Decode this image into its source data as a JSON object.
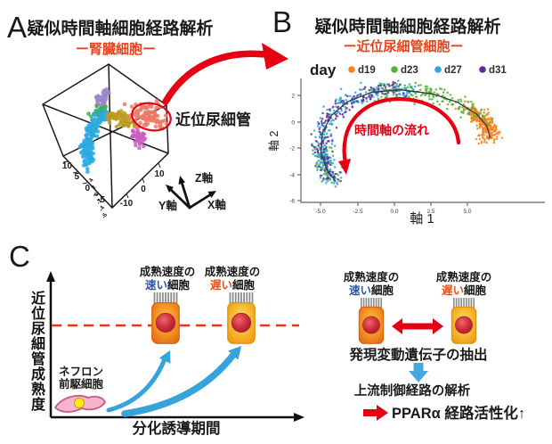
{
  "colors": {
    "accent_red": "#E60012",
    "subtitle_orange_red": "#E8431C",
    "proximal_label_salmon": "#E8705A",
    "fast_highlight_blue": "#2D54A5",
    "slow_highlight_red": "#E8501E",
    "flow_arrow_blue": "#35A3DC",
    "dashed_line_red": "#E8321E"
  },
  "panelA": {
    "letter": "A",
    "title": "疑似時間軸細胞経路解析",
    "subtitle": "ー腎臓細胞ー",
    "cluster_label": "近位尿細管",
    "axis_triad": {
      "x": "X軸",
      "y": "Y軸",
      "z": "Z軸"
    },
    "ticks_left": [
      "10",
      "5",
      "0",
      "-5"
    ],
    "ticks_right": [
      "-10",
      "0",
      "10"
    ],
    "ticks_vertical": [
      "4",
      "2",
      "0",
      "-2",
      "-4",
      "-6"
    ]
  },
  "panelB": {
    "letter": "B",
    "title": "疑似時間軸細胞経路解析",
    "subtitle": "ー近位尿細管細胞ー",
    "legend_title": "day",
    "legend": [
      {
        "label": "d19",
        "color": "#F5821F"
      },
      {
        "label": "d23",
        "color": "#53B332"
      },
      {
        "label": "d27",
        "color": "#2BA6DE"
      },
      {
        "label": "d31",
        "color": "#5F2D91"
      }
    ],
    "annotation": "時間軸の流れ",
    "xlabel": "軸 1",
    "ylabel": "軸 2",
    "xticks": [
      "-5.0",
      "-2.5",
      "0.0",
      "2.5",
      "5.0"
    ],
    "yticks": [
      "2",
      "0",
      "-2",
      "-4",
      "-6"
    ]
  },
  "panelC": {
    "letter": "C",
    "left": {
      "ylabel": "近位尿細管成熟度",
      "xlabel": "分化誘導期間",
      "progenitor_label_line1": "ネフロン",
      "progenitor_label_line2": "前駆細胞"
    },
    "fast_cell_label": {
      "line1": "成熟速度の",
      "highlight": "速い",
      "rest": "細胞"
    },
    "slow_cell_label": {
      "line1": "成熟速度の",
      "highlight": "遅い",
      "rest": "細胞"
    },
    "right": {
      "step1": "発現変動遺伝子の抽出",
      "step2": "上流制御経路の解析",
      "conclusion": "PPARα 経路活性化↑"
    }
  },
  "chart_data": [
    {
      "id": "kidney3d",
      "type": "scatter",
      "panel": "A",
      "title": "疑似時間軸細胞経路解析 ー腎臓細胞ー",
      "description": "3D pseudotime trajectory of kidney organoid cells; salmon proximal tubule cluster circled in red",
      "axes": [
        "X軸",
        "Y軸",
        "Z軸"
      ],
      "axis_ranges": {
        "left_edge": [
          10,
          -5
        ],
        "right_edge": [
          -10,
          10
        ],
        "vertical": [
          4,
          -6
        ]
      },
      "clusters": [
        {
          "name": "cluster-lavender",
          "color": "#9E86C8",
          "path": [
            [
              111,
              117
            ],
            [
              120,
              103
            ]
          ],
          "count": 45,
          "spread": 3.2
        },
        {
          "name": "cluster-green",
          "color": "#3BAD4B",
          "path": [
            [
              107,
              128
            ],
            [
              117,
              124
            ]
          ],
          "count": 35,
          "spread": 3.5
        },
        {
          "name": "cluster-cyan",
          "color": "#2BAAE1",
          "path": [
            [
              116,
              126
            ],
            [
              104,
              143
            ],
            [
              101,
              158
            ],
            [
              97,
              172
            ],
            [
              100,
              188
            ]
          ],
          "count": 160,
          "spread": 3.5
        },
        {
          "name": "cluster-gold",
          "color": "#BD9B22",
          "path": [
            [
              125,
              128
            ],
            [
              137,
              133
            ],
            [
              148,
              139
            ]
          ],
          "count": 65,
          "spread": 4
        },
        {
          "name": "cluster-magenta",
          "color": "#C95FBF",
          "path": [
            [
              152,
              146
            ],
            [
              158,
              158
            ],
            [
              158,
              163
            ]
          ],
          "count": 40,
          "spread": 3.2
        },
        {
          "name": "proximal-tubule",
          "color": "#ED7A67",
          "path": [
            [
              155,
              126
            ],
            [
              168,
              130
            ],
            [
              181,
              135
            ]
          ],
          "count": 95,
          "spread": 6.5
        }
      ]
    },
    {
      "id": "pseudotime2d",
      "type": "scatter",
      "panel": "B",
      "title": "疑似時間軸細胞経路解析 ー近位尿細管細胞ー",
      "xlabel": "軸 1",
      "ylabel": "軸 2",
      "xlim": [
        -6.4,
        10.2
      ],
      "ylim": [
        -6.1,
        3.2
      ],
      "xticks": [
        -5.0,
        -2.5,
        0.0,
        2.5,
        5.0
      ],
      "yticks": [
        2,
        0,
        -2,
        -4,
        -6
      ],
      "legend_title": "day",
      "legend_position": "top",
      "annotation": "時間軸の流れ",
      "trajectory": [
        [
          6.5,
          -1.2
        ],
        [
          6.3,
          -0.3
        ],
        [
          5.6,
          0.6
        ],
        [
          4.3,
          1.5
        ],
        [
          2.6,
          2.15
        ],
        [
          0.4,
          2.45
        ],
        [
          -1.6,
          2.25
        ],
        [
          -3.2,
          1.55
        ],
        [
          -4.3,
          0.5
        ],
        [
          -4.9,
          -0.8
        ],
        [
          -5.0,
          -2.3
        ],
        [
          -4.6,
          -3.6
        ],
        [
          -4.0,
          -4.5
        ]
      ],
      "series": [
        {
          "name": "d19",
          "color": "#F5821F",
          "segments": [
            [
              0.0,
              0.1,
              200,
              6
            ],
            [
              0.05,
              0.16,
              60,
              4.5
            ]
          ]
        },
        {
          "name": "d23",
          "color": "#53B332",
          "segments": [
            [
              0.06,
              0.52,
              170,
              5.5
            ],
            [
              0.86,
              1.0,
              55,
              5
            ]
          ]
        },
        {
          "name": "d27",
          "color": "#2BA6DE",
          "segments": [
            [
              0.36,
              0.9,
              200,
              5.5
            ],
            [
              0.86,
              1.0,
              90,
              5.5
            ]
          ]
        },
        {
          "name": "d31",
          "color": "#5F2D91",
          "segments": [
            [
              0.4,
              0.88,
              130,
              5.5
            ],
            [
              0.86,
              1.0,
              35,
              4.5
            ]
          ]
        }
      ]
    }
  ]
}
